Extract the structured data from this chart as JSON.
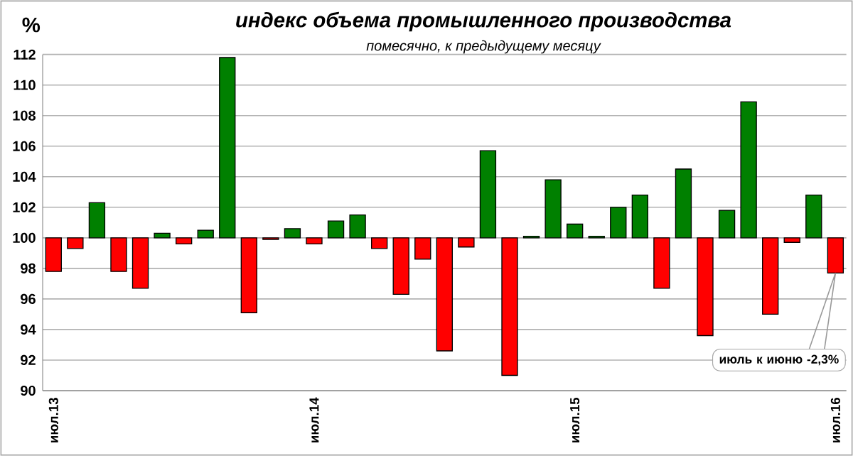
{
  "chart_data": {
    "type": "bar",
    "title": "индекс объема промышленного производства",
    "subtitle": "помесячно, к предыдущему месяцу",
    "ylabel": "%",
    "categories": [
      "июл.13",
      null,
      null,
      null,
      null,
      null,
      null,
      null,
      null,
      null,
      null,
      null,
      "июл.14",
      null,
      null,
      null,
      null,
      null,
      null,
      null,
      null,
      null,
      null,
      null,
      "июл.15",
      null,
      null,
      null,
      null,
      null,
      null,
      null,
      null,
      null,
      null,
      null,
      "июл.16"
    ],
    "base": [
      100,
      100,
      100,
      100,
      100,
      100,
      100,
      100,
      100,
      100,
      100,
      100,
      100,
      100,
      100,
      100,
      100,
      100,
      100,
      100,
      100,
      100,
      100,
      100,
      100,
      100,
      100,
      100,
      100,
      100,
      100,
      100,
      100,
      100,
      100,
      100,
      100
    ],
    "values": [
      -2.2,
      -0.7,
      2.3,
      -2.2,
      -3.3,
      0.3,
      -0.4,
      0.5,
      11.8,
      -4.9,
      -0.1,
      0.6,
      -0.4,
      1.1,
      1.5,
      -0.7,
      -3.7,
      -1.4,
      -7.4,
      -0.6,
      5.7,
      -9.0,
      0.1,
      3.8,
      0.9,
      0.1,
      2.0,
      2.8,
      -3.3,
      4.5,
      -6.4,
      1.8,
      8.9,
      -5.0,
      -0.3,
      2.8,
      -2.3
    ],
    "colors": [
      "#ff0000",
      "#ff0000",
      "#008000",
      "#ff0000",
      "#ff0000",
      "#008000",
      "#ff0000",
      "#008000",
      "#008000",
      "#ff0000",
      "#ff0000",
      "#008000",
      "#ff0000",
      "#008000",
      "#008000",
      "#ff0000",
      "#ff0000",
      "#ff0000",
      "#ff0000",
      "#ff0000",
      "#008000",
      "#ff0000",
      "#008000",
      "#008000",
      "#008000",
      "#008000",
      "#008000",
      "#008000",
      "#ff0000",
      "#008000",
      "#ff0000",
      "#008000",
      "#008000",
      "#ff0000",
      "#ff0000",
      "#008000",
      "#ff0000"
    ],
    "ylim": [
      90,
      112
    ],
    "yticks": [
      90,
      92,
      94,
      96,
      98,
      100,
      102,
      104,
      106,
      108,
      110,
      112
    ],
    "grid": "y",
    "annotations": [
      "июль к июню -2,3%"
    ]
  }
}
